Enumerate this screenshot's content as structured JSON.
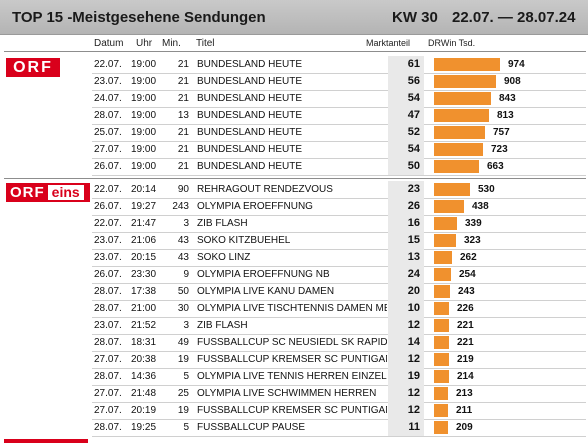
{
  "header": {
    "title": "TOP 15 -Meistgesehene Sendungen",
    "week": "KW 30",
    "date_range": "22.07. — 28.07.24"
  },
  "columns": {
    "date": "Datum",
    "time": "Uhr",
    "minutes": "Min.",
    "title": "Titel",
    "share": "Marktanteil",
    "reach": "DRWin Tsd."
  },
  "bar_color": "#f0912e",
  "brand_color": "#d9001b",
  "sections": [
    {
      "channel": "ORF",
      "logo_text": "ORF",
      "rows": [
        {
          "date": "22.07.",
          "time": "19:00",
          "min": "21",
          "title": "BUNDESLAND HEUTE",
          "share": "61",
          "reach": 974
        },
        {
          "date": "23.07.",
          "time": "19:00",
          "min": "21",
          "title": "BUNDESLAND HEUTE",
          "share": "56",
          "reach": 908
        },
        {
          "date": "24.07.",
          "time": "19:00",
          "min": "21",
          "title": "BUNDESLAND HEUTE",
          "share": "54",
          "reach": 843
        },
        {
          "date": "28.07.",
          "time": "19:00",
          "min": "13",
          "title": "BUNDESLAND HEUTE",
          "share": "47",
          "reach": 813
        },
        {
          "date": "25.07.",
          "time": "19:00",
          "min": "21",
          "title": "BUNDESLAND HEUTE",
          "share": "52",
          "reach": 757
        },
        {
          "date": "27.07.",
          "time": "19:00",
          "min": "21",
          "title": "BUNDESLAND HEUTE",
          "share": "54",
          "reach": 723
        },
        {
          "date": "26.07.",
          "time": "19:00",
          "min": "21",
          "title": "BUNDESLAND HEUTE",
          "share": "50",
          "reach": 663
        }
      ]
    },
    {
      "channel": "ORF eins",
      "logo_text": "ORF",
      "logo_suffix": "eins",
      "rows": [
        {
          "date": "22.07.",
          "time": "20:14",
          "min": "90",
          "title": "REHRAGOUT RENDEZVOUS",
          "share": "23",
          "reach": 530
        },
        {
          "date": "26.07.",
          "time": "19:27",
          "min": "243",
          "title": "OLYMPIA EROEFFNUNG",
          "share": "26",
          "reach": 438
        },
        {
          "date": "22.07.",
          "time": "21:47",
          "min": "3",
          "title": "ZIB FLASH",
          "share": "16",
          "reach": 339
        },
        {
          "date": "23.07.",
          "time": "21:06",
          "min": "43",
          "title": "SOKO KITZBUEHEL",
          "share": "15",
          "reach": 323
        },
        {
          "date": "23.07.",
          "time": "20:15",
          "min": "43",
          "title": "SOKO LINZ",
          "share": "13",
          "reach": 262
        },
        {
          "date": "26.07.",
          "time": "23:30",
          "min": "9",
          "title": "OLYMPIA EROEFFNUNG NB",
          "share": "24",
          "reach": 254
        },
        {
          "date": "28.07.",
          "time": "17:38",
          "min": "50",
          "title": "OLYMPIA LIVE KANU DAMEN",
          "share": "20",
          "reach": 243
        },
        {
          "date": "28.07.",
          "time": "21:00",
          "min": "30",
          "title": "OLYMPIA LIVE TISCHTENNIS DAMEN ME",
          "share": "10",
          "reach": 226
        },
        {
          "date": "23.07.",
          "time": "21:52",
          "min": "3",
          "title": "ZIB FLASH",
          "share": "12",
          "reach": 221
        },
        {
          "date": "28.07.",
          "time": "18:31",
          "min": "49",
          "title": "FUSSBALLCUP SC NEUSIEDL SK RAPID H",
          "share": "14",
          "reach": 221
        },
        {
          "date": "27.07.",
          "time": "20:38",
          "min": "19",
          "title": "FUSSBALLCUP KREMSER SC PUNTIGAME",
          "share": "12",
          "reach": 219
        },
        {
          "date": "28.07.",
          "time": "14:36",
          "min": "5",
          "title": "OLYMPIA LIVE TENNIS HERREN EINZEL",
          "share": "19",
          "reach": 214
        },
        {
          "date": "27.07.",
          "time": "21:48",
          "min": "25",
          "title": "OLYMPIA LIVE SCHWIMMEN HERREN",
          "share": "12",
          "reach": 213
        },
        {
          "date": "27.07.",
          "time": "20:19",
          "min": "19",
          "title": "FUSSBALLCUP KREMSER SC PUNTIGAME",
          "share": "12",
          "reach": 211
        },
        {
          "date": "28.07.",
          "time": "19:25",
          "min": "5",
          "title": "FUSSBALLCUP PAUSE",
          "share": "11",
          "reach": 209
        }
      ]
    }
  ]
}
